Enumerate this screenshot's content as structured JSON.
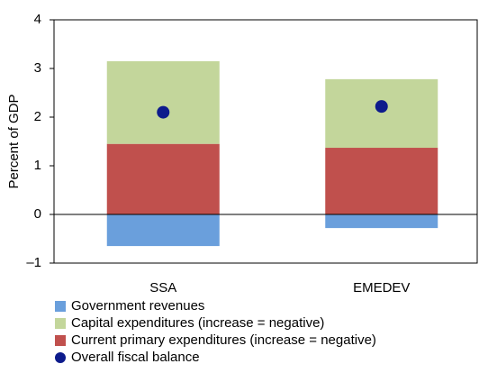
{
  "chart_data": {
    "type": "bar",
    "ylabel": "Percent of GDP",
    "categories": [
      "SSA",
      "EMEDEV"
    ],
    "series": [
      {
        "name": "Government revenues",
        "color": "#6a9fdc",
        "type": "bar",
        "values": [
          -0.65,
          -0.28
        ]
      },
      {
        "name": "Capital expenditures (increase = negative)",
        "color": "#c3d69b",
        "type": "bar",
        "values": [
          1.7,
          1.41
        ]
      },
      {
        "name": "Current primary expenditures (increase = negative)",
        "color": "#c0504d",
        "type": "bar",
        "values": [
          1.45,
          1.37
        ]
      },
      {
        "name": "Overall fiscal balance",
        "color": "#0d1b8c",
        "type": "point",
        "values": [
          2.1,
          2.22
        ]
      }
    ],
    "ylim": [
      -1,
      4
    ],
    "yticks": [
      {
        "value": -1,
        "label": "–1"
      },
      0,
      1,
      2,
      3,
      4
    ],
    "grid": false
  }
}
